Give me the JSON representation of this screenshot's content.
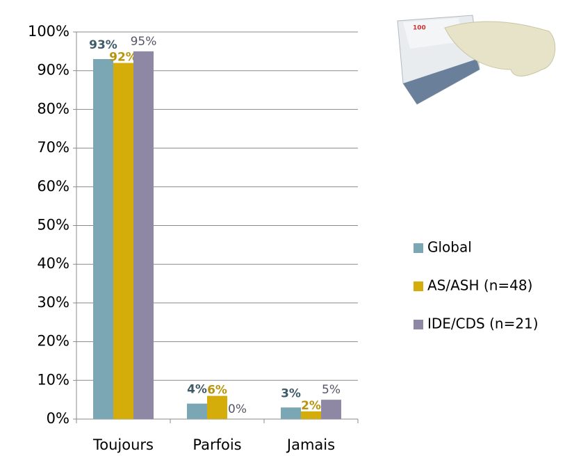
{
  "chart_data": {
    "type": "bar",
    "categories": [
      "Toujours",
      "Parfois",
      "Jamais"
    ],
    "series": [
      {
        "name": "Global",
        "color": "#7ba7b5",
        "values": [
          93,
          4,
          3
        ],
        "value_labels": [
          "93%",
          "4%",
          "3%"
        ],
        "label_color": "#3f5a69",
        "label_bold": true
      },
      {
        "name": "AS/ASH (n=48)",
        "color": "#d4ad0b",
        "values": [
          92,
          6,
          2
        ],
        "value_labels": [
          "92%",
          "6%",
          "2%"
        ],
        "label_color": "#b8950a",
        "label_bold": true
      },
      {
        "name": "IDE/CDS (n=21)",
        "color": "#8e88a5",
        "values": [
          95,
          0,
          5
        ],
        "value_labels": [
          "95%",
          "0%",
          "5%"
        ],
        "label_color": "#555566",
        "label_bold": false
      }
    ],
    "ylim": [
      0,
      100
    ],
    "yticks": [
      {
        "value": 0,
        "label": "0%"
      },
      {
        "value": 10,
        "label": "10%"
      },
      {
        "value": 20,
        "label": "20%"
      },
      {
        "value": 30,
        "label": "30%"
      },
      {
        "value": 40,
        "label": "40%"
      },
      {
        "value": 50,
        "label": "50%"
      },
      {
        "value": 60,
        "label": "60%"
      },
      {
        "value": 70,
        "label": "70%"
      },
      {
        "value": 80,
        "label": "80%"
      },
      {
        "value": 90,
        "label": "90%"
      },
      {
        "value": 100,
        "label": "100%"
      }
    ],
    "grid": true,
    "legend": "right"
  }
}
